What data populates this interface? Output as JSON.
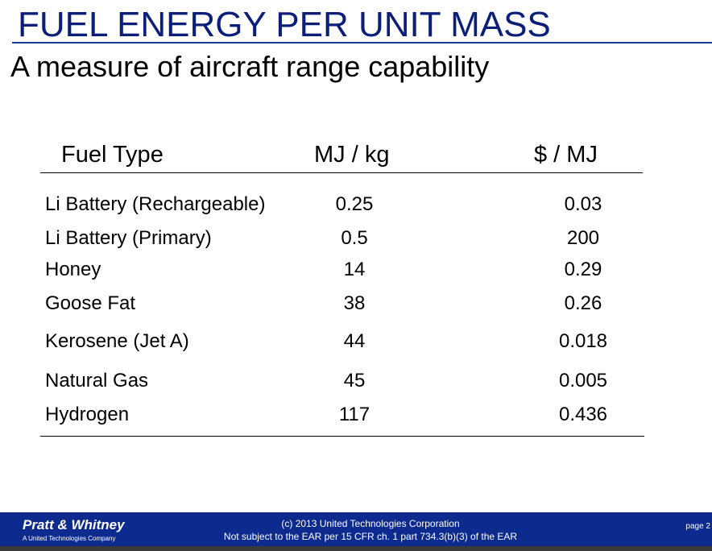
{
  "header": {
    "title": "FUEL ENERGY PER UNIT MASS",
    "subtitle": "A measure of aircraft range capability"
  },
  "table": {
    "columns": [
      "Fuel Type",
      "MJ / kg",
      "$ / MJ"
    ],
    "rows": [
      [
        "Li Battery (Rechargeable)",
        0.25,
        0.03
      ],
      [
        "Li Battery (Primary)",
        0.5,
        200
      ],
      [
        "Honey",
        14,
        0.29
      ],
      [
        "Goose Fat",
        38,
        0.26
      ],
      [
        "Kerosene (Jet A)",
        44,
        0.018
      ],
      [
        "Natural Gas",
        45,
        0.005
      ],
      [
        "Hydrogen",
        117,
        0.436
      ]
    ]
  },
  "footer": {
    "logo": "Pratt & Whitney",
    "logo_subtitle": "A United Technologies Company",
    "copyright": "(c) 2013 United Technologies Corporation",
    "notice": "Not subject to the EAR per 15 CFR ch. 1 part 734.3(b)(3) of the EAR",
    "page": "page 2"
  }
}
